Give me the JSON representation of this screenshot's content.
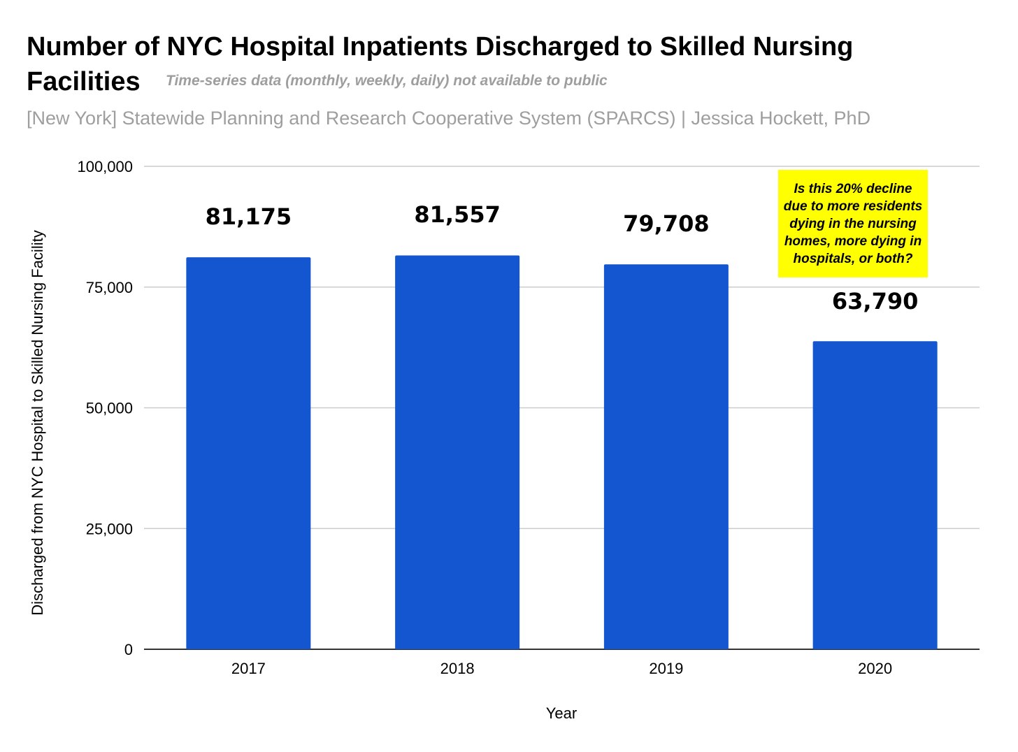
{
  "title_line_1": "Number of NYC Hospital Inpatients Discharged to Skilled Nursing",
  "title_line_2": "Facilities",
  "title_note": "Time-series data (monthly, weekly, daily) not available to public",
  "subtitle": "[New York] Statewide Planning and Research Cooperative System (SPARCS) | Jessica Hockett, PhD",
  "annotation": "Is this 20% decline due to more residents dying in the nursing homes, more dying in hospitals, or both?",
  "colors": {
    "bar": "#1456cf",
    "annotation_bg": "#ffff00",
    "gridline": "#cccccc",
    "baseline": "#333333",
    "muted_text": "#9e9e9e"
  },
  "chart_data": {
    "type": "bar",
    "title": "Number of NYC Hospital Inpatients Discharged to Skilled Nursing Facilities",
    "xlabel": "Year",
    "ylabel": "Discharged from NYC Hospital to Skilled Nursing Facility",
    "categories": [
      "2017",
      "2018",
      "2019",
      "2020"
    ],
    "values": [
      81175,
      81557,
      79708,
      63790
    ],
    "data_labels": [
      "81,175",
      "81,557",
      "79,708",
      "63,790"
    ],
    "ylim": [
      0,
      100000
    ],
    "yticks": [
      0,
      25000,
      50000,
      75000,
      100000
    ],
    "ytick_labels": [
      "0",
      "25,000",
      "50,000",
      "75,000",
      "100,000"
    ],
    "grid": true,
    "legend": "none"
  }
}
